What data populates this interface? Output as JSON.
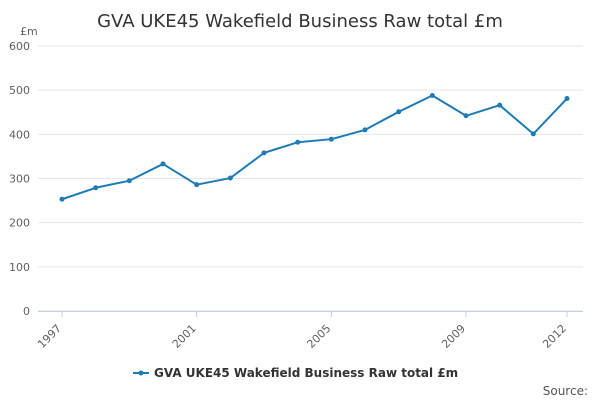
{
  "chart_data": {
    "type": "line",
    "title": "GVA UKE45 Wakefield Business Raw total £m",
    "ylabel": "£m",
    "xlabel": "",
    "ylim": [
      0,
      600
    ],
    "yticks": [
      0,
      100,
      200,
      300,
      400,
      500,
      600
    ],
    "xlim": [
      1997,
      2012
    ],
    "xticks": [
      1997,
      2001,
      2005,
      2009,
      2012
    ],
    "grid": true,
    "legend_position": "bottom-center",
    "series": [
      {
        "name": "GVA UKE45 Wakefield Business Raw total £m",
        "color": "#1f7bb6",
        "x": [
          1997,
          1998,
          1999,
          2000,
          2001,
          2002,
          2003,
          2004,
          2005,
          2006,
          2007,
          2008,
          2009,
          2010,
          2011,
          2012
        ],
        "values": [
          253,
          279,
          295,
          333,
          286,
          301,
          358,
          382,
          389,
          410,
          451,
          488,
          442,
          466,
          401,
          481
        ]
      }
    ],
    "source_label": "Source:"
  }
}
